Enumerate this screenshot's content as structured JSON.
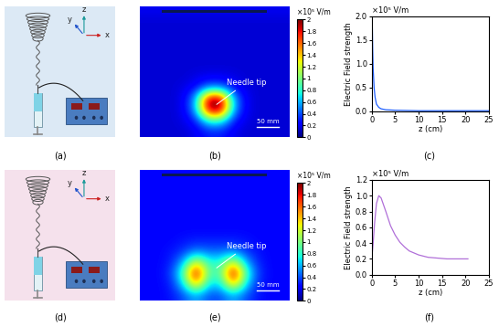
{
  "chart_data": [
    {
      "type": "schematic",
      "label": "(a)",
      "axis_labels": [
        "z",
        "y",
        "x"
      ],
      "color": "#dce9f5"
    },
    {
      "type": "heatmap",
      "label": "(b)",
      "annotations": [
        "Needle tip"
      ],
      "scale_bar": "50 mm",
      "colorbar_label": "×10⁵ V/m",
      "color_range": [
        0,
        2
      ],
      "color_ticks": [
        0,
        0.2,
        0.4,
        0.6,
        0.8,
        1,
        1.2,
        1.4,
        1.6,
        1.8,
        2
      ],
      "tick_labels": false,
      "cells": [
        [
          0.2,
          0.2,
          0.2,
          0.2,
          0.2,
          0.2,
          0.2,
          0.2,
          0.2,
          0.2,
          0.2,
          0.2
        ],
        [
          0.15,
          0.15,
          0.15,
          0.15,
          0.15,
          0.15,
          0.15,
          0.15,
          0.15,
          0.15,
          0.15,
          0.15
        ],
        [
          0.15,
          0.15,
          0.15,
          0.15,
          0.15,
          0.15,
          0.15,
          0.15,
          0.15,
          0.15,
          0.15,
          0.15
        ],
        [
          0.15,
          0.15,
          0.15,
          0.15,
          0.15,
          0.15,
          0.15,
          0.15,
          0.15,
          0.15,
          0.15,
          0.15
        ],
        [
          0.15,
          0.15,
          0.15,
          0.15,
          0.15,
          0.15,
          0.15,
          0.15,
          0.15,
          0.15,
          0.15,
          0.15
        ],
        [
          0.15,
          0.15,
          0.15,
          0.15,
          0.15,
          0.15,
          0.15,
          0.15,
          0.15,
          0.15,
          0.15,
          0.15
        ],
        [
          0.15,
          0.15,
          0.15,
          0.15,
          0.18,
          0.2,
          0.2,
          0.18,
          0.15,
          0.15,
          0.15,
          0.15
        ],
        [
          0.15,
          0.15,
          0.15,
          0.18,
          0.25,
          0.5,
          0.5,
          0.25,
          0.18,
          0.15,
          0.15,
          0.15
        ],
        [
          0.15,
          0.15,
          0.15,
          0.2,
          0.6,
          2.0,
          2.0,
          0.6,
          0.2,
          0.15,
          0.15,
          0.15
        ],
        [
          0.15,
          0.15,
          0.15,
          0.2,
          0.6,
          2.0,
          2.0,
          0.6,
          0.2,
          0.15,
          0.15,
          0.15
        ],
        [
          0.15,
          0.15,
          0.15,
          0.18,
          0.3,
          0.8,
          0.8,
          0.3,
          0.18,
          0.15,
          0.15,
          0.15
        ],
        [
          0.15,
          0.15,
          0.15,
          0.15,
          0.2,
          0.3,
          0.3,
          0.2,
          0.15,
          0.15,
          0.15,
          0.15
        ]
      ]
    },
    {
      "type": "line",
      "label": "(c)",
      "xlabel": "z (cm)",
      "ylabel": "Electric Field strength",
      "y_unit": "×10⁵ V/m",
      "color": "#1f5fff",
      "x": [
        0.1,
        0.2,
        0.3,
        0.5,
        0.7,
        1.0,
        1.5,
        2,
        3,
        5,
        10,
        15,
        20,
        25
      ],
      "values": [
        1.9,
        1.3,
        0.9,
        0.5,
        0.3,
        0.15,
        0.08,
        0.05,
        0.03,
        0.02,
        0.01,
        0.01,
        0.01,
        0.01
      ],
      "xlim": [
        0,
        25
      ],
      "xticks": [
        0,
        5,
        10,
        15,
        20,
        25
      ],
      "ylim": [
        0,
        2.0
      ],
      "yticks": [
        {
          "value": 0,
          "label": "0.0"
        },
        0.5,
        {
          "value": 1,
          "label": "1.0"
        },
        1.5,
        {
          "value": 2,
          "label": "2.0"
        }
      ]
    },
    {
      "type": "schematic",
      "label": "(d)",
      "axis_labels": [
        "z",
        "y",
        "x"
      ],
      "color": "#f5e1ec"
    },
    {
      "type": "heatmap",
      "label": "(e)",
      "annotations": [
        "Needle tip"
      ],
      "scale_bar": "50 mm",
      "colorbar_label": "×10⁵ V/m",
      "color_range": [
        0,
        2
      ],
      "color_ticks": [
        0,
        0.2,
        0.4,
        0.6,
        0.8,
        1,
        1.2,
        1.4,
        1.6,
        1.8,
        2
      ],
      "tick_labels": false,
      "cells": [
        [
          0.25,
          0.25,
          0.25,
          0.25,
          0.25,
          0.25,
          0.25,
          0.25,
          0.25,
          0.25,
          0.25,
          0.25
        ],
        [
          0.25,
          0.25,
          0.25,
          0.25,
          0.25,
          0.25,
          0.25,
          0.25,
          0.25,
          0.25,
          0.25,
          0.25
        ],
        [
          0.25,
          0.25,
          0.25,
          0.25,
          0.25,
          0.25,
          0.25,
          0.25,
          0.25,
          0.25,
          0.25,
          0.25
        ],
        [
          0.25,
          0.25,
          0.25,
          0.25,
          0.25,
          0.25,
          0.25,
          0.25,
          0.25,
          0.25,
          0.25,
          0.25
        ],
        [
          0.25,
          0.25,
          0.25,
          0.25,
          0.25,
          0.25,
          0.25,
          0.25,
          0.25,
          0.25,
          0.25,
          0.25
        ],
        [
          0.25,
          0.25,
          0.25,
          0.25,
          0.25,
          0.25,
          0.25,
          0.25,
          0.25,
          0.25,
          0.25,
          0.25
        ],
        [
          0.25,
          0.25,
          0.25,
          0.28,
          0.3,
          0.3,
          0.3,
          0.3,
          0.28,
          0.25,
          0.25,
          0.25
        ],
        [
          0.25,
          0.25,
          0.28,
          0.35,
          0.5,
          0.45,
          0.45,
          0.5,
          0.35,
          0.28,
          0.25,
          0.25
        ],
        [
          0.25,
          0.25,
          0.3,
          0.6,
          1.3,
          0.8,
          0.8,
          1.3,
          0.6,
          0.3,
          0.25,
          0.25
        ],
        [
          0.25,
          0.25,
          0.35,
          0.9,
          2.0,
          0.9,
          0.9,
          2.0,
          0.9,
          0.35,
          0.25,
          0.25
        ],
        [
          0.25,
          0.25,
          0.3,
          0.7,
          1.5,
          0.7,
          0.7,
          1.5,
          0.7,
          0.3,
          0.25,
          0.25
        ],
        [
          0.25,
          0.25,
          0.28,
          0.4,
          0.6,
          0.4,
          0.4,
          0.6,
          0.4,
          0.28,
          0.25,
          0.25
        ]
      ]
    },
    {
      "type": "line",
      "label": "(f)",
      "xlabel": "z (cm)",
      "ylabel": "Electric Field strength",
      "y_unit": "×10⁵ V/m",
      "color": "#b06fd8",
      "x": [
        0,
        0.3,
        0.6,
        1.0,
        1.5,
        2,
        3,
        4,
        5,
        6,
        7,
        8,
        10,
        12,
        14,
        16,
        18,
        20.5
      ],
      "values": [
        0.2,
        0.4,
        0.65,
        0.9,
        1.0,
        0.97,
        0.8,
        0.62,
        0.5,
        0.41,
        0.35,
        0.3,
        0.25,
        0.22,
        0.21,
        0.2,
        0.2,
        0.2
      ],
      "xlim": [
        0,
        25
      ],
      "xticks": [
        0,
        5,
        10,
        15,
        20,
        25
      ],
      "ylim": [
        0,
        1.2
      ],
      "yticks": [
        {
          "value": 0,
          "label": "0.0"
        },
        0.2,
        0.4,
        0.6,
        0.8,
        {
          "value": 1,
          "label": "1.0"
        },
        1.2
      ]
    }
  ]
}
